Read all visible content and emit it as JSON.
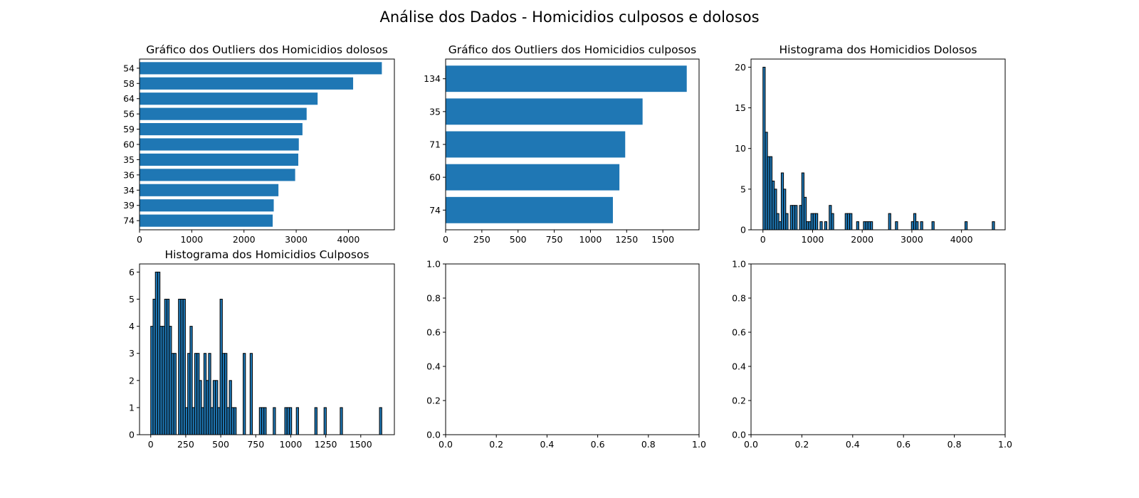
{
  "suptitle": "Análise dos Dados - Homicidios culposos e dolosos",
  "colors": {
    "bar": "#1f77b4",
    "edge": "#000000",
    "axis": "#000000"
  },
  "chart_data": [
    {
      "id": "ax1",
      "type": "bar",
      "orientation": "horizontal",
      "title": "Gráfico dos Outliers dos Homicidios dolosos",
      "xlabel": "",
      "ylabel": "",
      "categories": [
        "54",
        "58",
        "64",
        "56",
        "59",
        "60",
        "35",
        "36",
        "34",
        "39",
        "74"
      ],
      "values": [
        4640,
        4090,
        3410,
        3200,
        3120,
        3050,
        3040,
        2980,
        2660,
        2570,
        2550
      ],
      "xlim": [
        0,
        4880
      ],
      "xticks": [
        0,
        1000,
        2000,
        3000,
        4000
      ]
    },
    {
      "id": "ax2",
      "type": "bar",
      "orientation": "horizontal",
      "title": "Gráfico dos Outliers dos Homicidios culposos",
      "xlabel": "",
      "ylabel": "",
      "categories": [
        "134",
        "35",
        "71",
        "60",
        "74"
      ],
      "values": [
        1665,
        1360,
        1240,
        1200,
        1155
      ],
      "xlim": [
        0,
        1750
      ],
      "xticks": [
        0,
        250,
        500,
        750,
        1000,
        1250,
        1500
      ]
    },
    {
      "id": "ax3",
      "type": "histogram",
      "title": "Histograma dos Homicidios Dolosos",
      "xlabel": "",
      "ylabel": "",
      "xlim": [
        -240,
        4880
      ],
      "ylim": [
        0,
        21
      ],
      "xticks": [
        0,
        1000,
        2000,
        3000,
        4000
      ],
      "yticks": [
        0,
        5,
        10,
        15,
        20
      ],
      "bin_width": 46,
      "bins": [
        [
          0,
          20
        ],
        [
          46,
          12
        ],
        [
          92,
          9
        ],
        [
          138,
          9
        ],
        [
          184,
          6
        ],
        [
          230,
          5
        ],
        [
          276,
          2
        ],
        [
          322,
          1
        ],
        [
          368,
          7
        ],
        [
          414,
          5
        ],
        [
          460,
          2
        ],
        [
          552,
          3
        ],
        [
          598,
          3
        ],
        [
          644,
          3
        ],
        [
          736,
          3
        ],
        [
          782,
          7
        ],
        [
          828,
          4
        ],
        [
          874,
          1
        ],
        [
          920,
          1
        ],
        [
          966,
          2
        ],
        [
          1012,
          2
        ],
        [
          1058,
          2
        ],
        [
          1150,
          1
        ],
        [
          1242,
          1
        ],
        [
          1334,
          3
        ],
        [
          1380,
          2
        ],
        [
          1656,
          2
        ],
        [
          1702,
          2
        ],
        [
          1748,
          2
        ],
        [
          1886,
          1
        ],
        [
          2024,
          1
        ],
        [
          2070,
          1
        ],
        [
          2116,
          1
        ],
        [
          2162,
          1
        ],
        [
          2530,
          2
        ],
        [
          2668,
          1
        ],
        [
          2990,
          1
        ],
        [
          3036,
          2
        ],
        [
          3082,
          1
        ],
        [
          3174,
          1
        ],
        [
          3404,
          1
        ],
        [
          4070,
          1
        ],
        [
          4620,
          1
        ]
      ]
    },
    {
      "id": "ax4",
      "type": "histogram",
      "title": "Histograma dos Homicidios Culposos",
      "xlabel": "",
      "ylabel": "",
      "xlim": [
        -80,
        1740
      ],
      "ylim": [
        0,
        6.3
      ],
      "xticks": [
        0,
        250,
        500,
        750,
        1000,
        1250,
        1500
      ],
      "yticks": [
        0,
        1,
        2,
        3,
        4,
        5,
        6
      ],
      "bin_width": 16.5,
      "bins": [
        [
          0,
          4
        ],
        [
          16.5,
          5
        ],
        [
          33,
          6
        ],
        [
          49.5,
          6
        ],
        [
          66,
          4
        ],
        [
          82.5,
          4
        ],
        [
          99,
          5
        ],
        [
          115.5,
          5
        ],
        [
          132,
          4
        ],
        [
          148.5,
          3
        ],
        [
          165,
          3
        ],
        [
          198,
          5
        ],
        [
          214.5,
          5
        ],
        [
          231,
          5
        ],
        [
          247.5,
          1
        ],
        [
          264,
          3
        ],
        [
          280.5,
          4
        ],
        [
          297,
          1
        ],
        [
          313.5,
          3
        ],
        [
          330,
          3
        ],
        [
          346.5,
          2
        ],
        [
          363,
          1
        ],
        [
          379.5,
          3
        ],
        [
          396,
          2
        ],
        [
          412.5,
          3
        ],
        [
          429,
          1
        ],
        [
          445.5,
          2
        ],
        [
          462,
          2
        ],
        [
          478.5,
          1
        ],
        [
          495,
          5
        ],
        [
          511.5,
          3
        ],
        [
          528,
          3
        ],
        [
          544.5,
          1
        ],
        [
          561,
          2
        ],
        [
          577.5,
          1
        ],
        [
          594,
          1
        ],
        [
          660,
          3
        ],
        [
          709.5,
          3
        ],
        [
          775.5,
          1
        ],
        [
          792,
          1
        ],
        [
          808.5,
          1
        ],
        [
          874.5,
          1
        ],
        [
          957,
          1
        ],
        [
          973.5,
          1
        ],
        [
          990,
          1
        ],
        [
          1039.5,
          1
        ],
        [
          1171.5,
          1
        ],
        [
          1237.5,
          1
        ],
        [
          1353,
          1
        ],
        [
          1633.5,
          1
        ]
      ]
    },
    {
      "id": "ax5",
      "type": "empty",
      "title": "",
      "xlim": [
        0,
        1
      ],
      "ylim": [
        0,
        1
      ],
      "xticks": [
        0.0,
        0.2,
        0.4,
        0.6,
        0.8,
        1.0
      ],
      "yticks": [
        0.0,
        0.2,
        0.4,
        0.6,
        0.8,
        1.0
      ],
      "xticklabels": [
        "0.0",
        "0.2",
        "0.4",
        "0.6",
        "0.8",
        "1.0"
      ],
      "yticklabels": [
        "0.0",
        "0.2",
        "0.4",
        "0.6",
        "0.8",
        "1.0"
      ]
    },
    {
      "id": "ax6",
      "type": "empty",
      "title": "",
      "xlim": [
        0,
        1
      ],
      "ylim": [
        0,
        1
      ],
      "xticks": [
        0.0,
        0.2,
        0.4,
        0.6,
        0.8,
        1.0
      ],
      "yticks": [
        0.0,
        0.2,
        0.4,
        0.6,
        0.8,
        1.0
      ],
      "xticklabels": [
        "0.0",
        "0.2",
        "0.4",
        "0.6",
        "0.8",
        "1.0"
      ],
      "yticklabels": [
        "0.0",
        "0.2",
        "0.4",
        "0.6",
        "0.8",
        "1.0"
      ]
    }
  ]
}
